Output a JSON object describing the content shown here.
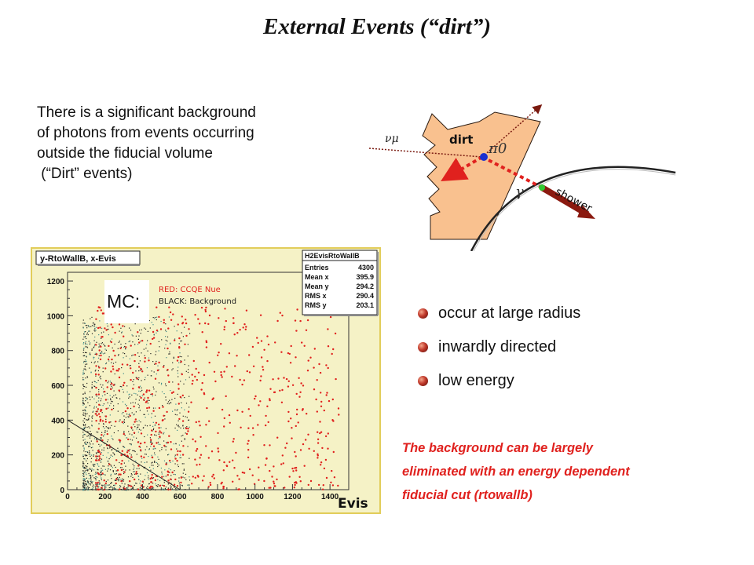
{
  "title": "External Events (“dirt”)",
  "intro_lines": [
    "There is a significant background",
    "of photons from events occurring",
    "outside the fiducial volume",
    " (“Dirt” events)"
  ],
  "diagram": {
    "nu_label": "νμ",
    "dirt_label": "dirt",
    "pi0_label": "π0",
    "gamma_label": "γ",
    "shower_label": "shower",
    "colors": {
      "dirt": "#f9c18f",
      "shower": "#8b1a10",
      "photon": "#e0211e",
      "vertex": "#1a2fd0",
      "conversion": "#32c832"
    }
  },
  "plot": {
    "header_label": "y-RtoWallB, x-Evis",
    "mc_label": "MC:",
    "legend_red": "RED: CCQE Nue",
    "legend_black": "BLACK: Background",
    "x_axis_label": "Evis",
    "stats": {
      "name": "H2EvisRtoWallB",
      "rows": [
        {
          "label": "Entries",
          "value": "4300"
        },
        {
          "label": "Mean x",
          "value": "395.9"
        },
        {
          "label": "Mean y",
          "value": "294.2"
        },
        {
          "label": "RMS x",
          "value": "290.4"
        },
        {
          "label": "RMS y",
          "value": "203.1"
        }
      ]
    },
    "colors": {
      "frame_bg": "#f5f2c6",
      "frame_border": "#e2cd5a",
      "signal": "#e0211e",
      "background": "#222222"
    }
  },
  "chart_data": {
    "type": "scatter",
    "title": "y-RtoWallB, x-Evis",
    "xlabel": "Evis",
    "ylabel": "",
    "xlim": [
      0,
      1500
    ],
    "ylim": [
      0,
      1250
    ],
    "x_ticks": [
      0,
      200,
      400,
      600,
      800,
      1000,
      1200,
      1400
    ],
    "y_ticks": [
      0,
      200,
      400,
      600,
      800,
      1000,
      1200
    ],
    "series": [
      {
        "name": "RED: CCQE Nue",
        "color": "#e0211e",
        "x_range": [
          150,
          1450
        ],
        "y_range": [
          0,
          1050
        ]
      },
      {
        "name": "BLACK: Background",
        "color": "#222222",
        "x_range": [
          80,
          650
        ],
        "y_range": [
          0,
          1000
        ]
      }
    ],
    "cut_line": {
      "x": [
        0,
        600
      ],
      "y": [
        400,
        0
      ]
    }
  },
  "bullets": [
    "occur at large radius",
    "inwardly directed",
    "low energy"
  ],
  "conclusion_lines": [
    "The background can be largely",
    "eliminated with an energy dependent",
    "fiducial cut (rtowallb)"
  ]
}
